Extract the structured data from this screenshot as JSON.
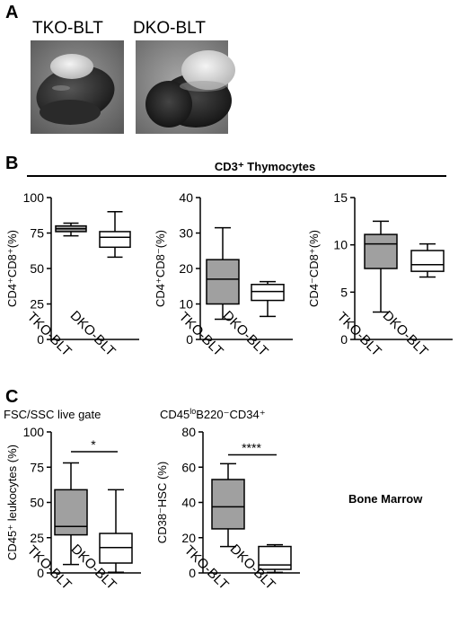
{
  "panel_a": {
    "letter": "A",
    "photos": [
      {
        "label": "TKO-BLT",
        "kind": "organ-small-white-lobe"
      },
      {
        "label": "DKO-BLT",
        "kind": "organ-large-white-lobe"
      }
    ]
  },
  "panel_b": {
    "letter": "B",
    "title": "CD3⁺ Thymocytes"
  },
  "panel_c": {
    "letter": "C",
    "tissue_label": "Bone Marrow"
  },
  "chart_data": [
    {
      "type": "box",
      "panel": "B",
      "ylabel": "CD4⁺CD8⁺(%)",
      "ylim": [
        0,
        100
      ],
      "yticks": [
        0,
        25,
        50,
        75,
        100
      ],
      "categories": [
        "TKO-BLT",
        "DKO-BLT"
      ],
      "boxes": [
        {
          "name": "TKO-BLT",
          "fill": "#a0a0a0",
          "min": 73,
          "q1": 76,
          "median": 78,
          "q3": 80,
          "max": 82
        },
        {
          "name": "DKO-BLT",
          "fill": "#ffffff",
          "min": 58,
          "q1": 65,
          "median": 72,
          "q3": 76,
          "max": 90
        }
      ]
    },
    {
      "type": "box",
      "panel": "B",
      "ylabel": "CD4⁺CD8⁻(%)",
      "ylim": [
        0,
        40
      ],
      "yticks": [
        0,
        10,
        20,
        30,
        40
      ],
      "categories": [
        "TKO-BLT",
        "DKO-BLT"
      ],
      "boxes": [
        {
          "name": "TKO-BLT",
          "fill": "#a0a0a0",
          "min": 5.7,
          "q1": 10,
          "median": 17,
          "q3": 22.5,
          "max": 31.5
        },
        {
          "name": "DKO-BLT",
          "fill": "#ffffff",
          "min": 6.5,
          "q1": 11,
          "median": 13.5,
          "q3": 15.5,
          "max": 16.3
        }
      ]
    },
    {
      "type": "box",
      "panel": "B",
      "ylabel": "CD4⁻CD8⁺(%)",
      "ylim": [
        0,
        15
      ],
      "yticks": [
        0,
        5,
        10,
        15
      ],
      "categories": [
        "TKO-BLT",
        "DKO-BLT"
      ],
      "boxes": [
        {
          "name": "TKO-BLT",
          "fill": "#a0a0a0",
          "min": 2.9,
          "q1": 7.5,
          "median": 10.1,
          "q3": 11.1,
          "max": 12.5
        },
        {
          "name": "DKO-BLT",
          "fill": "#ffffff",
          "min": 6.6,
          "q1": 7.2,
          "median": 7.9,
          "q3": 9.4,
          "max": 10.1
        }
      ]
    },
    {
      "type": "box",
      "panel": "C",
      "title": "FSC/SSC live gate",
      "ylabel": "CD45⁺ leukocytes (%)",
      "ylim": [
        0,
        100
      ],
      "yticks": [
        0,
        25,
        50,
        75,
        100
      ],
      "categories": [
        "TKO-BLT",
        "DKO-BLT"
      ],
      "significance": "*",
      "boxes": [
        {
          "name": "TKO-BLT",
          "fill": "#a0a0a0",
          "min": 6,
          "q1": 27,
          "median": 33,
          "q3": 59,
          "max": 78
        },
        {
          "name": "DKO-BLT",
          "fill": "#ffffff",
          "min": 0.5,
          "q1": 7,
          "median": 18,
          "q3": 28,
          "max": 59
        }
      ]
    },
    {
      "type": "box",
      "panel": "C",
      "title_parts": [
        "CD45",
        "lo",
        "B220⁻CD34⁺"
      ],
      "ylabel": "CD38⁻HSC (%)",
      "ylim": [
        0,
        80
      ],
      "yticks": [
        0,
        20,
        40,
        60,
        80
      ],
      "categories": [
        "TKO-BLT",
        "DKO-BLT"
      ],
      "significance": "****",
      "boxes": [
        {
          "name": "TKO-BLT",
          "fill": "#a0a0a0",
          "min": 15,
          "q1": 25,
          "median": 37.5,
          "q3": 53,
          "max": 62
        },
        {
          "name": "DKO-BLT",
          "fill": "#ffffff",
          "min": 0.3,
          "q1": 2,
          "median": 4.5,
          "q3": 15,
          "max": 16
        }
      ]
    }
  ]
}
